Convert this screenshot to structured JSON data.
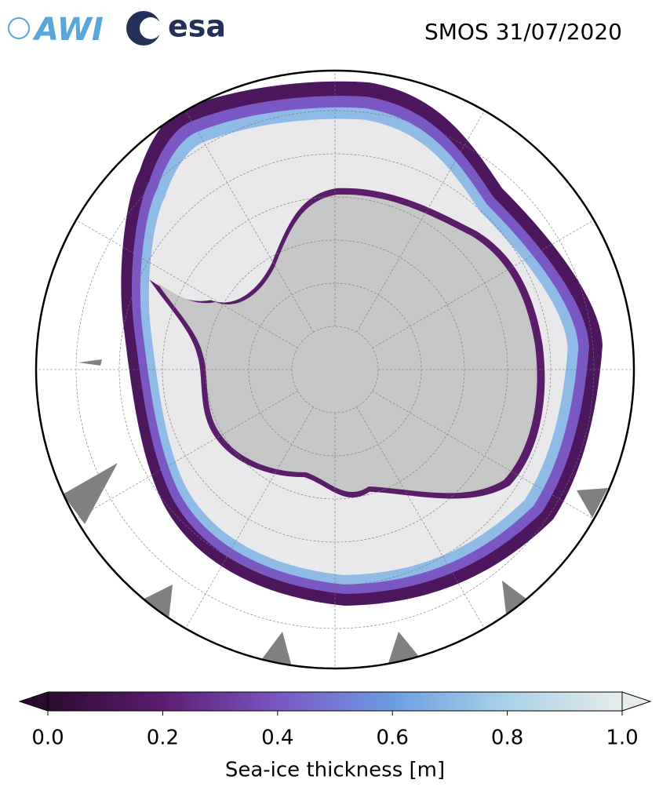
{
  "logos": {
    "awi": "AWI",
    "esa": "esa"
  },
  "map": {
    "title": "SMOS 31/07/2020",
    "colorbar": {
      "label": "Sea-ice thickness [m]",
      "lim": [
        0,
        1
      ],
      "ticks": [
        {
          "value": 0,
          "label": "0.0"
        },
        {
          "value": 0.2,
          "label": "0.2"
        },
        {
          "value": 0.4,
          "label": "0.4"
        },
        {
          "value": 0.6,
          "label": "0.6"
        },
        {
          "value": 0.8,
          "label": "0.8"
        },
        {
          "value": 1,
          "label": "1.0"
        }
      ]
    }
  }
}
